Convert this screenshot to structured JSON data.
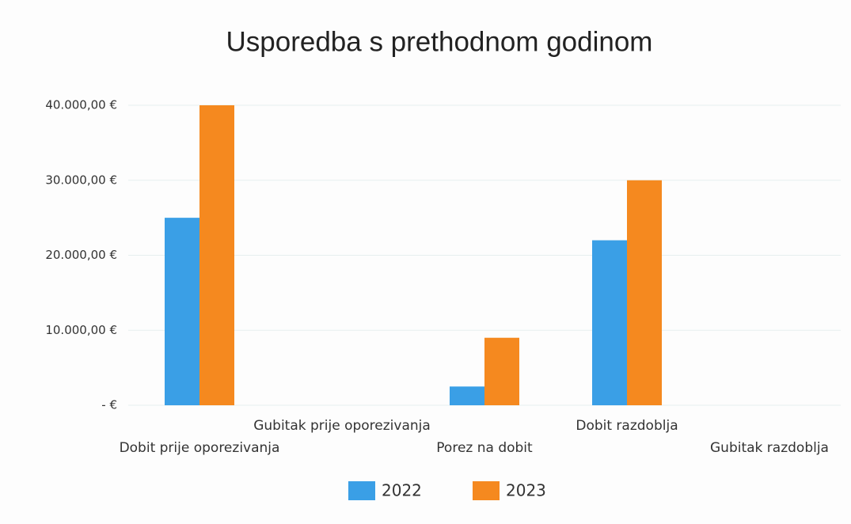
{
  "chart_data": {
    "type": "bar",
    "title": "Usporedba s prethodnom godinom",
    "categories": [
      "Dobit prije oporezivanja",
      "Gubitak prije oporezivanja",
      "Porez na dobit",
      "Dobit razdoblja",
      "Gubitak razdoblja"
    ],
    "series": [
      {
        "name": "2022",
        "color": "#3a9fe6",
        "values": [
          25000,
          0,
          2500,
          22000,
          0
        ]
      },
      {
        "name": "2023",
        "color": "#f5891f",
        "values": [
          40000,
          0,
          9000,
          30000,
          0
        ]
      }
    ],
    "ylim": [
      0,
      40000
    ],
    "yticks": [
      {
        "value": 0,
        "label": "-   €"
      },
      {
        "value": 10000,
        "label": "10.000,00 €"
      },
      {
        "value": 20000,
        "label": "20.000,00 €"
      },
      {
        "value": 30000,
        "label": "30.000,00 €"
      },
      {
        "value": 40000,
        "label": "40.000,00 €"
      }
    ],
    "grid": true,
    "legend": "bottom"
  }
}
